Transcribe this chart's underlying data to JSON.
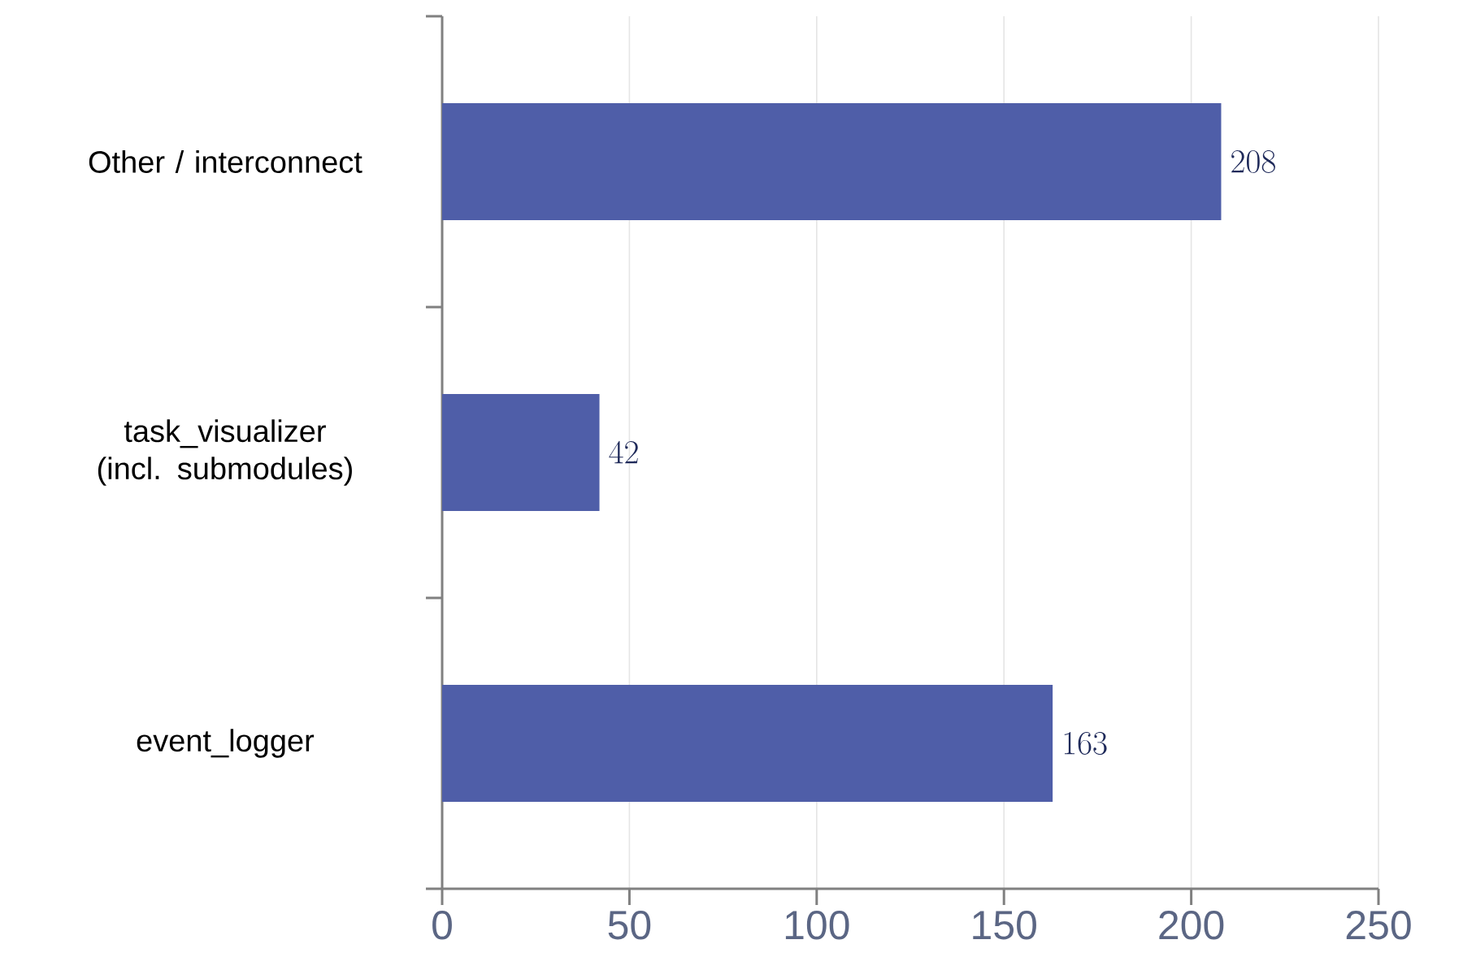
{
  "chart_data": {
    "type": "bar",
    "orientation": "horizontal",
    "categories": [
      "Other / interconnect",
      "task_visualizer (incl. submodules)",
      "event_logger"
    ],
    "values": [
      208,
      42,
      163
    ],
    "color": "#4f5ea8",
    "xlim": [
      0,
      250
    ],
    "xticks": [
      0,
      50,
      100,
      150,
      200,
      250
    ],
    "grid": "x",
    "data_labels": true
  }
}
